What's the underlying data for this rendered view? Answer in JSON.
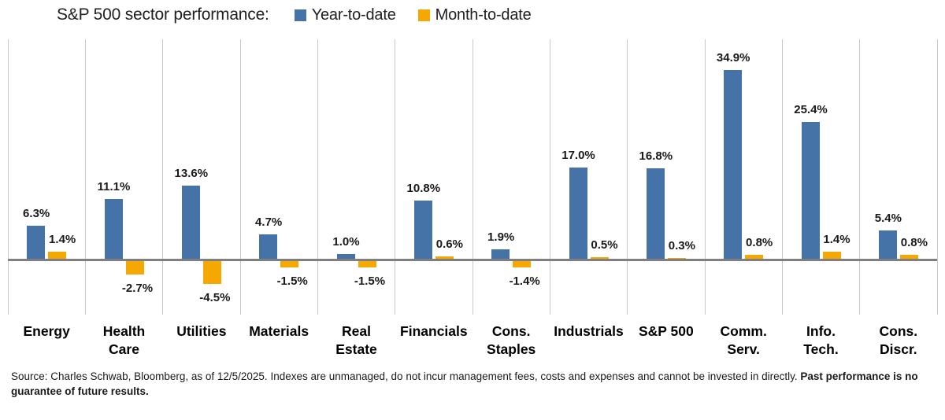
{
  "header": {
    "title": "S&P 500 sector performance:"
  },
  "legend": [
    {
      "label": "Year-to-date",
      "color": "#4573a8"
    },
    {
      "label": "Month-to-date",
      "color": "#f5a702"
    }
  ],
  "chart_data": {
    "type": "bar",
    "title": "S&P 500 sector performance:",
    "categories": [
      "Energy",
      "Health\nCare",
      "Utilities",
      "Materials",
      "Real\nEstate",
      "Financials",
      "Cons.\nStaples",
      "Industrials",
      "S&P 500",
      "Comm.\nServ.",
      "Info.\nTech.",
      "Cons.\nDiscr."
    ],
    "series": [
      {
        "name": "Year-to-date",
        "color": "#4573a8",
        "values": [
          6.3,
          11.1,
          13.6,
          4.7,
          1.0,
          10.8,
          1.9,
          17.0,
          16.8,
          34.9,
          25.4,
          5.4
        ]
      },
      {
        "name": "Month-to-date",
        "color": "#f5a702",
        "values": [
          1.4,
          -2.7,
          -4.5,
          -1.5,
          -1.5,
          0.6,
          -1.4,
          0.5,
          0.3,
          0.8,
          1.4,
          0.8
        ]
      }
    ],
    "value_suffix": "%",
    "ylim": [
      -10,
      40
    ],
    "grid": "vertical-only",
    "legend_position": "top",
    "zero_line_color": "#7f7f7f",
    "gridline_color": "#c9c9c9"
  },
  "footnote": {
    "text": "Source: Charles Schwab, Bloomberg, as of 12/5/2025.  Indexes are unmanaged, do not incur management fees, costs and expenses and cannot be invested in directly. ",
    "bold": "Past performance is no guarantee of future results."
  }
}
